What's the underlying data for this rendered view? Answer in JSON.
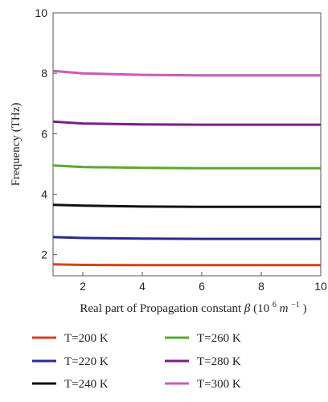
{
  "chart_data": {
    "type": "line",
    "title": "",
    "xlabel_main": "Real part of Propagation constant ",
    "xlabel_symbol": "β",
    "xlabel_unit_open": " (10",
    "xlabel_unit_exp": "6",
    "xlabel_unit_m": " m",
    "xlabel_unit_mexp": "−1",
    "xlabel_unit_close": ")",
    "ylabel": "Frequency (THz)",
    "xlim": [
      1,
      10
    ],
    "ylim": [
      1.3,
      10
    ],
    "xticks": [
      2,
      4,
      6,
      8,
      10
    ],
    "yticks": [
      2,
      4,
      6,
      8,
      10
    ],
    "grid": false,
    "legend_position": "bottom",
    "series": [
      {
        "name": "T=200 K",
        "color": "#d4411f",
        "x": [
          1,
          2,
          4,
          6,
          8,
          10
        ],
        "y": [
          1.68,
          1.66,
          1.65,
          1.65,
          1.65,
          1.65
        ]
      },
      {
        "name": "T=220 K",
        "color": "#2a2a8e",
        "x": [
          1,
          2,
          4,
          6,
          8,
          10
        ],
        "y": [
          2.58,
          2.55,
          2.53,
          2.52,
          2.52,
          2.52
        ]
      },
      {
        "name": "T=240 K",
        "color": "#111111",
        "x": [
          1,
          2,
          4,
          6,
          8,
          10
        ],
        "y": [
          3.65,
          3.62,
          3.59,
          3.58,
          3.58,
          3.58
        ]
      },
      {
        "name": "T=260 K",
        "color": "#5aa832",
        "x": [
          1,
          2,
          4,
          6,
          8,
          10
        ],
        "y": [
          4.95,
          4.9,
          4.87,
          4.86,
          4.86,
          4.86
        ]
      },
      {
        "name": "T=280 K",
        "color": "#7a1f86",
        "x": [
          1,
          2,
          4,
          6,
          8,
          10
        ],
        "y": [
          6.4,
          6.34,
          6.31,
          6.3,
          6.3,
          6.3
        ]
      },
      {
        "name": "T=300 K",
        "color": "#c85bb8",
        "x": [
          1,
          2,
          4,
          6,
          8,
          10
        ],
        "y": [
          8.08,
          8.0,
          7.95,
          7.93,
          7.93,
          7.93
        ]
      }
    ]
  }
}
